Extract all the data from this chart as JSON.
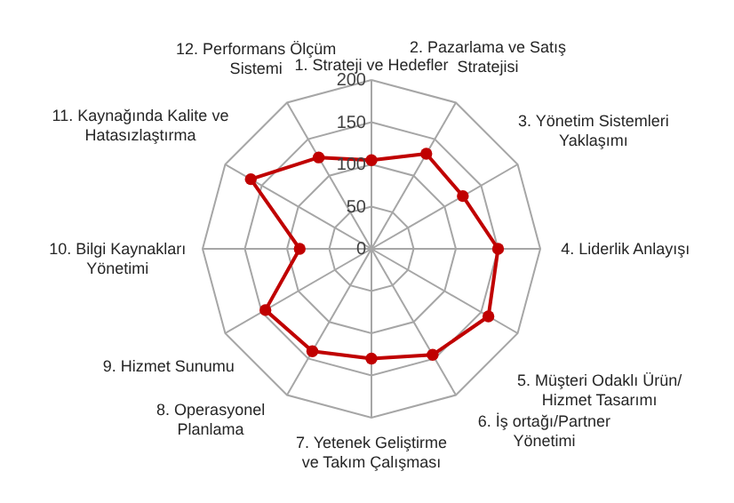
{
  "chart_data": {
    "type": "radar",
    "categories": [
      "1. Strateji ve Hedefler",
      "2. Pazarlama ve Satış\nStratejisi",
      "3. Yönetim Sistemleri\nYaklaşımı",
      "4. Liderlik Anlayışı",
      "5. Müşteri Odaklı Ürün/\nHizmet Tasarımı",
      "6. İş ortağı/Partner\nYönetimi",
      "7. Yetenek Geliştirme\nve Takım Çalışması",
      "8. Operasyonel\nPlanlama",
      "9. Hizmet Sunumu",
      "10. Bilgi Kaynakları\nYönetimi",
      "11. Kaynağında Kalite ve\nHatasızlaştırma",
      "12. Performans Ölçüm\nSistemi"
    ],
    "series": [
      {
        "color": "#c00000",
        "values": [
          105,
          130,
          125,
          150,
          160,
          145,
          130,
          140,
          145,
          85,
          165,
          125
        ]
      }
    ],
    "ylim": [
      0,
      200
    ],
    "yticks": [
      0,
      50,
      100,
      150,
      200
    ],
    "grid": true,
    "marker": "circle",
    "line_style": "solid"
  }
}
